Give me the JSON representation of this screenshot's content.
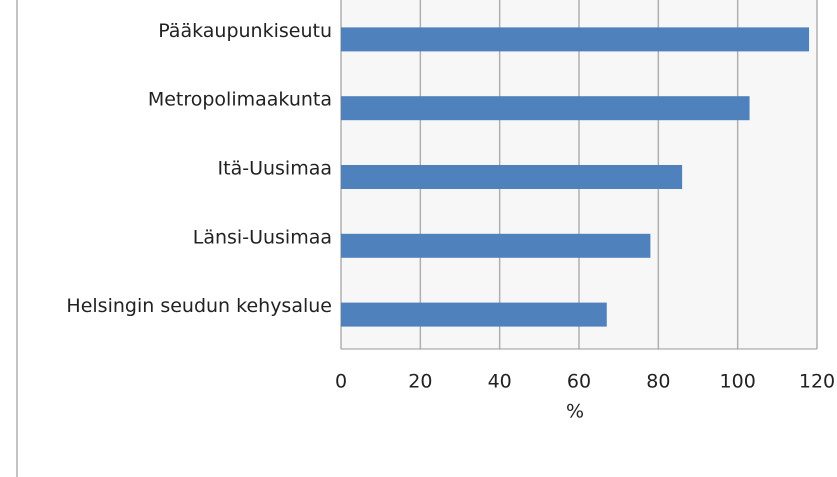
{
  "chart_data": {
    "type": "bar",
    "orientation": "horizontal",
    "categories": [
      "Pääkaupunkiseutu",
      "Metropolimaakunta",
      "Itä-Uusimaa",
      "Länsi-Uusimaa",
      "Helsingin seudun kehysalue"
    ],
    "values": [
      118,
      103,
      86,
      78,
      67
    ],
    "color": "#4f81bd",
    "xlabel": "%",
    "xlim": [
      0,
      120
    ],
    "xticks": [
      0,
      20,
      40,
      60,
      80,
      100,
      120
    ],
    "grid": true
  }
}
